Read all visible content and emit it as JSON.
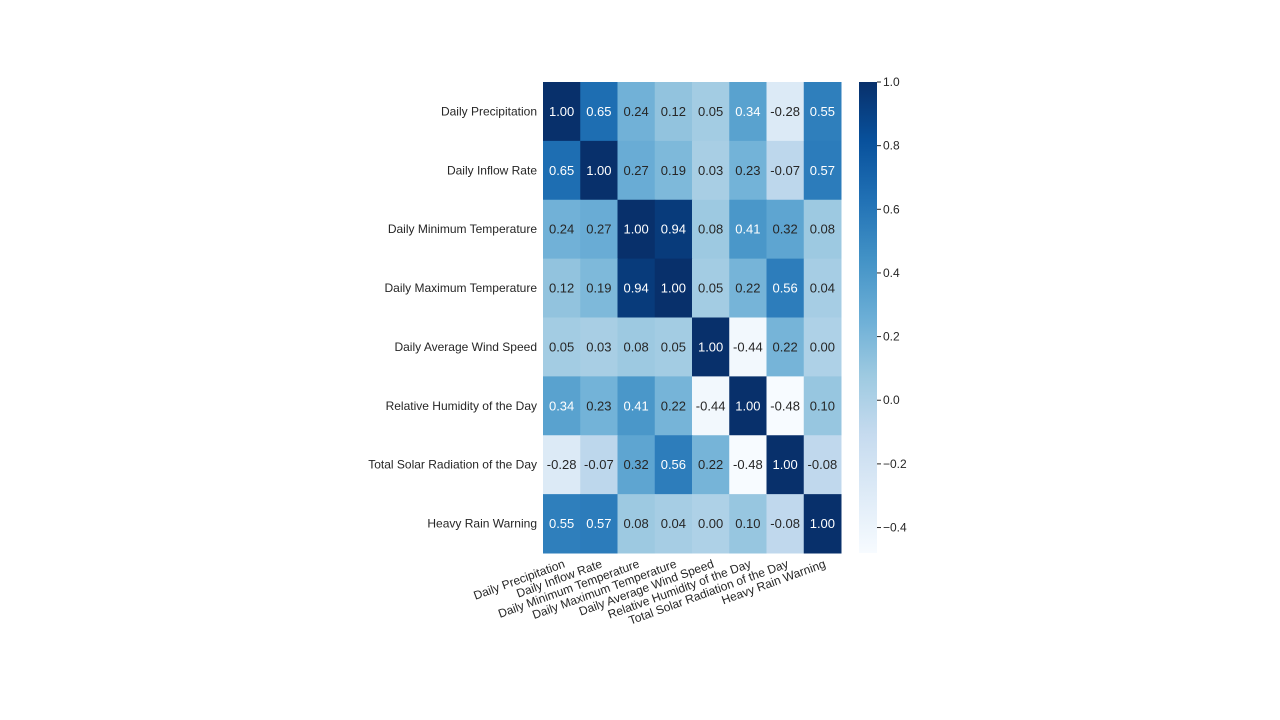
{
  "chart_data": {
    "type": "heatmap",
    "title": "",
    "xlabel": "",
    "ylabel": "",
    "variables": [
      "Daily Precipitation",
      "Daily Inflow Rate",
      "Daily Minimum Temperature",
      "Daily Maximum Temperature",
      "Daily Average Wind Speed",
      "Relative Humidity of the Day",
      "Total Solar Radiation of the Day",
      "Heavy Rain Warning"
    ],
    "matrix": [
      [
        1.0,
        0.65,
        0.24,
        0.12,
        0.05,
        0.34,
        -0.28,
        0.55
      ],
      [
        0.65,
        1.0,
        0.27,
        0.19,
        0.03,
        0.23,
        -0.07,
        0.57
      ],
      [
        0.24,
        0.27,
        1.0,
        0.94,
        0.08,
        0.41,
        0.32,
        0.08
      ],
      [
        0.12,
        0.19,
        0.94,
        1.0,
        0.05,
        0.22,
        0.56,
        0.04
      ],
      [
        0.05,
        0.03,
        0.08,
        0.05,
        1.0,
        -0.44,
        0.22,
        0.0
      ],
      [
        0.34,
        0.23,
        0.41,
        0.22,
        -0.44,
        1.0,
        -0.48,
        0.1
      ],
      [
        -0.28,
        -0.07,
        0.32,
        0.56,
        0.22,
        -0.48,
        1.0,
        -0.08
      ],
      [
        0.55,
        0.57,
        0.08,
        0.04,
        0.0,
        0.1,
        -0.08,
        1.0
      ]
    ],
    "cell_labels": [
      [
        "1.00",
        "0.65",
        "0.24",
        "0.12",
        "0.05",
        "0.34",
        "-0.28",
        "0.55"
      ],
      [
        "0.65",
        "1.00",
        "0.27",
        "0.19",
        "0.03",
        "0.23",
        "-0.07",
        "0.57"
      ],
      [
        "0.24",
        "0.27",
        "1.00",
        "0.94",
        "0.08",
        "0.41",
        "0.32",
        "0.08"
      ],
      [
        "0.12",
        "0.19",
        "0.94",
        "1.00",
        "0.05",
        "0.22",
        "0.56",
        "0.04"
      ],
      [
        "0.05",
        "0.03",
        "0.08",
        "0.05",
        "1.00",
        "-0.44",
        "0.22",
        "0.00"
      ],
      [
        "0.34",
        "0.23",
        "0.41",
        "0.22",
        "-0.44",
        "1.00",
        "-0.48",
        "0.10"
      ],
      [
        "-0.28",
        "-0.07",
        "0.32",
        "0.56",
        "0.22",
        "-0.48",
        "1.00",
        "-0.08"
      ],
      [
        "0.55",
        "0.57",
        "0.08",
        "0.04",
        "0.00",
        "0.10",
        "-0.08",
        "1.00"
      ]
    ],
    "colormap": "Blues",
    "colormap_stops": [
      "#f7fbff",
      "#deebf7",
      "#c6dbef",
      "#9ecae1",
      "#6baed6",
      "#4292c6",
      "#2171b5",
      "#08519c",
      "#08306b"
    ],
    "vmin": -0.48,
    "vmax": 1.0,
    "colorbar": {
      "ticks": [
        1.0,
        0.8,
        0.6,
        0.4,
        0.2,
        0.0,
        -0.2,
        -0.4
      ],
      "tick_labels": [
        "1.0",
        "0.8",
        "0.6",
        "0.4",
        "0.2",
        "0.0",
        "−0.2",
        "−0.4"
      ]
    },
    "grid": false,
    "legend": "right colorbar"
  }
}
